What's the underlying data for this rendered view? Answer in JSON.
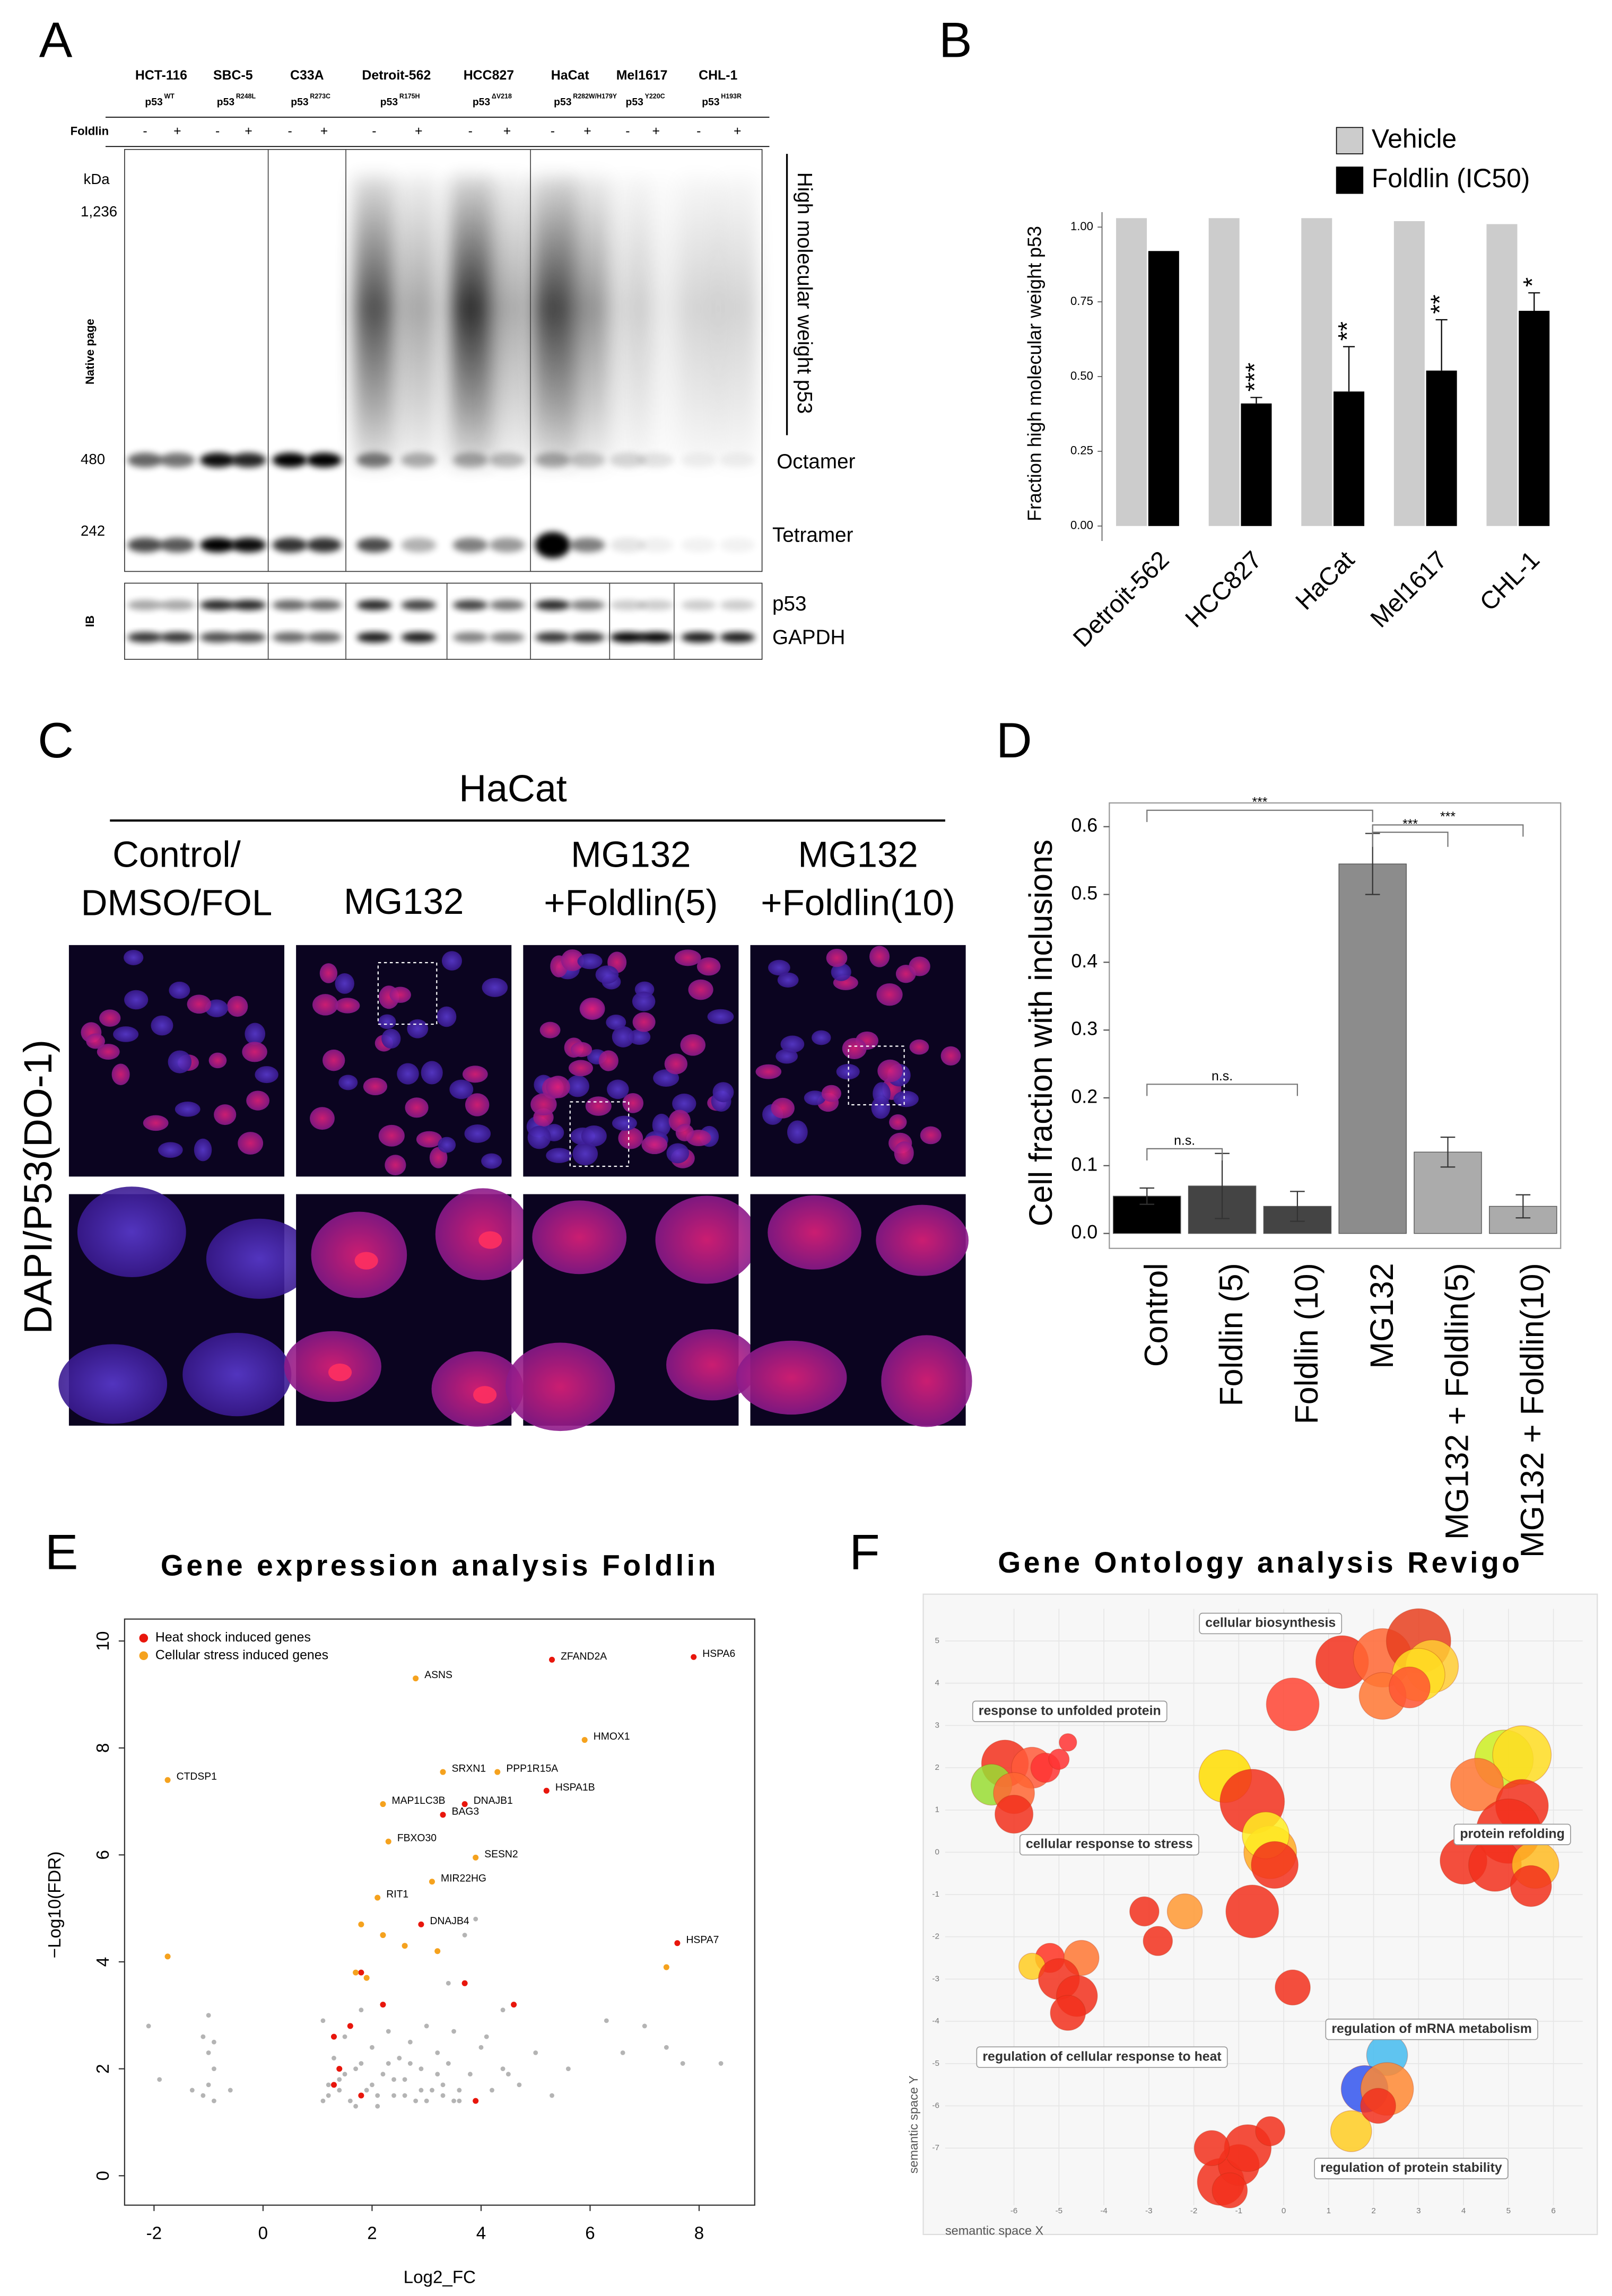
{
  "panels": [
    "A",
    "B",
    "C",
    "D",
    "E",
    "F"
  ],
  "blot": {
    "lanes": [
      {
        "name": "HCT-116",
        "p53": "p53",
        "mutation": "WT"
      },
      {
        "name": "SBC-5",
        "p53": "p53",
        "mutation": "R248L"
      },
      {
        "name": "C33A",
        "p53": "p53",
        "mutation": "R273C"
      },
      {
        "name": "Detroit-562",
        "p53": "p53",
        "mutation": "R175H"
      },
      {
        "name": "HCC827",
        "p53": "p53",
        "mutation": "ΔV218"
      },
      {
        "name": "HaCat",
        "p53": "p53",
        "mutation": "R282W/H179Y"
      },
      {
        "name": "Mel1617",
        "p53": "p53",
        "mutation": "Y220C"
      },
      {
        "name": "CHL-1",
        "p53": "p53",
        "mutation": "H193R"
      }
    ],
    "treatment": "Foldlin",
    "signs": [
      "-",
      "+"
    ],
    "kda": "kDa",
    "markers": [
      "1,236",
      "480",
      "242"
    ],
    "gel": "Native page",
    "bands": [
      "High molecular weight p53",
      "Octamer",
      "Tetramer"
    ],
    "ib": "IB",
    "ib_bands": [
      "p53",
      "GAPDH"
    ]
  },
  "microscopy": {
    "cell_line": "HaCat",
    "columns": [
      [
        "Control/",
        "DMSO/FOL"
      ],
      [
        "MG132"
      ],
      [
        "MG132",
        "+Foldlin(5)"
      ],
      [
        "MG132",
        "+Foldlin(10)"
      ]
    ],
    "stain": "DAPI/P53(DO-1)"
  },
  "chart_data": [
    {
      "type": "bar",
      "ylabel": "Fraction high molecular weight p53",
      "categories": [
        "Detroit-562",
        "HCC827",
        "HaCat",
        "Mel1617",
        "CHL-1"
      ],
      "series": [
        {
          "name": "Vehicle",
          "color": "#cccccc",
          "values": [
            1.03,
            1.03,
            1.03,
            1.02,
            1.01
          ]
        },
        {
          "name": "Foldlin (IC50)",
          "color": "#000000",
          "values": [
            0.92,
            0.41,
            0.45,
            0.52,
            0.72
          ],
          "errors": [
            0,
            0.02,
            0.15,
            0.17,
            0.06
          ],
          "significance": [
            null,
            "***",
            "**",
            "**",
            "*"
          ]
        }
      ],
      "ylim": [
        -0.05,
        1.05
      ],
      "yticks": [
        {
          "value": 0,
          "label": "0.00"
        },
        0.25,
        {
          "value": 0.5,
          "label": "0.50"
        },
        0.75,
        {
          "value": 1,
          "label": "1.00"
        }
      ],
      "legend": "top-right"
    },
    {
      "type": "bar",
      "ylabel": "Cell fraction with inclusions",
      "categories": [
        "Control",
        "Foldlin (5)",
        "Foldlin (10)",
        "MG132",
        "MG132 + Foldlin(5)",
        "MG132 + Foldlin(10)"
      ],
      "values": [
        0.055,
        0.07,
        0.04,
        0.545,
        0.12,
        0.04
      ],
      "errors": [
        0.012,
        0.048,
        0.022,
        0.045,
        0.022,
        0.017
      ],
      "colors": [
        "#000000",
        "#444444",
        "#444444",
        "#8c8c8c",
        "#ababab",
        "#ababab"
      ],
      "ylim": [
        -0.022,
        0.635
      ],
      "yticks": [
        {
          "value": 0,
          "label": "0.0"
        },
        0.1,
        0.2,
        0.3,
        0.4,
        0.5,
        0.6
      ],
      "comparisons": [
        {
          "from": 0,
          "to": 3,
          "label": "***"
        },
        {
          "from": 3,
          "to": 4,
          "label": "***"
        },
        {
          "from": 3,
          "to": 5,
          "label": "***"
        },
        {
          "from": 0,
          "to": 1,
          "label": "n.s."
        },
        {
          "from": 0,
          "to": 2,
          "label": "n.s."
        }
      ]
    },
    {
      "type": "scatter",
      "title": "Gene expression analysis Foldlin",
      "xlabel": "Log2_FC",
      "ylabel": "−Log10(FDR)",
      "series": [
        {
          "color": "#b4b4b4",
          "x": [
            -2.1,
            -1.9,
            -1.1,
            -1.0,
            -0.9,
            -1.0,
            -1.1,
            -0.9,
            -1.0,
            -0.9,
            -1.3,
            -0.6,
            1.1,
            1.2,
            1.3,
            1.4,
            1.5,
            1.6,
            1.7,
            1.8,
            1.9,
            2.0,
            2.1,
            2.2,
            2.3,
            2.4,
            2.5,
            2.6,
            2.7,
            2.8,
            2.9,
            3.0,
            3.1,
            3.2,
            3.3,
            3.4,
            3.5,
            3.6,
            3.8,
            4.0,
            4.2,
            4.4,
            4.7,
            5.0,
            5.3,
            5.6,
            1.2,
            1.5,
            1.8,
            2.1,
            2.4,
            2.7,
            3.0,
            3.3,
            3.6,
            1.1,
            1.4,
            1.7,
            2.0,
            2.3,
            2.6,
            2.9,
            3.2,
            3.5,
            4.1,
            4.5,
            3.7,
            3.9,
            6.3,
            6.6,
            7.4,
            7.7,
            8.4,
            7.0,
            4.4,
            3.4
          ],
          "y": [
            2.8,
            1.8,
            2.6,
            2.3,
            2.0,
            1.7,
            1.5,
            1.4,
            3.0,
            2.5,
            1.6,
            1.6,
            2.9,
            1.5,
            2.2,
            1.8,
            2.6,
            1.4,
            2.0,
            3.1,
            1.6,
            2.4,
            1.3,
            1.9,
            2.7,
            1.5,
            2.2,
            1.8,
            2.5,
            1.4,
            2.0,
            2.8,
            1.6,
            2.3,
            1.5,
            2.1,
            2.7,
            1.4,
            1.9,
            2.4,
            1.6,
            2.0,
            1.7,
            2.3,
            1.5,
            2.0,
            1.7,
            1.9,
            2.1,
            1.5,
            1.8,
            2.1,
            1.4,
            1.7,
            1.6,
            1.4,
            1.6,
            1.3,
            1.7,
            2.1,
            1.5,
            1.6,
            1.9,
            1.4,
            2.6,
            1.9,
            4.5,
            4.8,
            2.9,
            2.3,
            2.4,
            2.1,
            2.1,
            2.8,
            3.1,
            3.6
          ]
        },
        {
          "name": "Heat shock induced genes",
          "color": "#e8160c",
          "x": [
            7.9,
            5.3,
            5.2,
            3.7,
            3.3,
            2.9,
            7.6,
            1.8,
            2.2,
            3.7,
            4.6,
            1.3,
            1.6,
            1.4,
            3.9,
            1.3,
            1.8
          ],
          "y": [
            9.7,
            9.65,
            7.2,
            6.95,
            6.75,
            4.7,
            4.35,
            3.8,
            3.2,
            3.6,
            3.2,
            2.6,
            2.8,
            2.0,
            1.4,
            1.7,
            1.5
          ],
          "labels": [
            "HSPA6",
            "ZFAND2A",
            "HSPA1B",
            "DNAJB1",
            "BAG3",
            "DNAJB4",
            "HSPA7",
            null,
            null,
            null,
            null,
            null,
            null,
            null,
            null,
            null,
            null
          ]
        },
        {
          "name": "Cellular stress induced genes",
          "color": "#f5a21e",
          "x": [
            2.8,
            5.9,
            -1.75,
            3.3,
            4.3,
            2.2,
            2.3,
            3.9,
            3.1,
            2.1,
            -1.75,
            7.4,
            1.8,
            2.2,
            1.7,
            1.9,
            3.2,
            2.6
          ],
          "y": [
            9.3,
            8.15,
            7.4,
            7.55,
            7.55,
            6.95,
            6.25,
            5.95,
            5.5,
            5.2,
            4.1,
            3.9,
            4.7,
            4.5,
            3.8,
            3.7,
            4.2,
            4.3
          ],
          "labels": [
            "ASNS",
            "HMOX1",
            "CTDSP1",
            "SRXN1",
            "PPP1R15A",
            "MAP1LC3B",
            "FBXO30",
            "SESN2",
            "MIR22HG",
            "RIT1",
            null,
            null,
            null,
            null,
            null,
            null,
            null,
            null
          ]
        }
      ],
      "xlim": [
        -2.54,
        9.02
      ],
      "ylim": [
        -0.55,
        10.41
      ],
      "xticks": [
        -2,
        0,
        2,
        4,
        6,
        8
      ],
      "yticks": [
        0,
        2,
        4,
        6,
        8,
        10
      ],
      "legend": "top-left"
    },
    {
      "type": "bubble",
      "title": "Gene Ontology analysis Revigo",
      "xlabel": "semantic space X",
      "ylabel": "semantic space Y",
      "x": [
        1.3,
        2.2,
        3.0,
        3.3,
        3.0,
        2.2,
        2.8,
        0.2,
        -6.2,
        -5.6,
        -6.5,
        -6.0,
        -5.3,
        -5.0,
        -4.8,
        -6.0,
        -1.3,
        -0.7,
        -0.3,
        -0.4,
        -0.2,
        -2.2,
        -3.1,
        -2.8,
        -0.7,
        4.9,
        5.3,
        4.3,
        5.3,
        5.0,
        4.0,
        4.7,
        5.6,
        5.5,
        -5.2,
        -5.6,
        -4.5,
        -5.0,
        -4.6,
        -4.8,
        2.3,
        1.8,
        2.3,
        1.5,
        2.1,
        0.2,
        -1.4,
        -1.0,
        -0.8,
        -1.6,
        -0.3,
        -1.2
      ],
      "y": [
        4.5,
        4.6,
        5.0,
        4.4,
        4.2,
        3.7,
        3.9,
        3.5,
        2.1,
        2.0,
        1.6,
        1.4,
        2.0,
        2.2,
        2.6,
        0.9,
        1.8,
        1.2,
        0.0,
        0.4,
        -0.3,
        -1.4,
        -1.4,
        -2.1,
        -1.4,
        2.2,
        2.3,
        1.6,
        1.1,
        0.5,
        -0.2,
        -0.3,
        -0.3,
        -0.8,
        -2.5,
        -2.7,
        -2.5,
        -3.0,
        -3.4,
        -3.8,
        -4.8,
        -5.6,
        -5.6,
        -6.6,
        -6.0,
        -3.2,
        -7.8,
        -7.4,
        -7.0,
        -7.0,
        -6.6,
        -8.0
      ],
      "sizes": [
        18,
        20,
        22,
        18,
        18,
        16,
        14,
        18,
        16,
        14,
        14,
        14,
        10,
        7,
        6,
        13,
        18,
        22,
        18,
        16,
        16,
        12,
        10,
        10,
        18,
        20,
        20,
        18,
        18,
        22,
        16,
        18,
        16,
        14,
        10,
        9,
        12,
        14,
        14,
        12,
        14,
        16,
        18,
        14,
        12,
        12,
        16,
        14,
        16,
        12,
        10,
        12
      ],
      "colors": [
        "#f2301c",
        "#ff6633",
        "#e8401e",
        "#ffcc33",
        "#ffdd22",
        "#ff7733",
        "#ff5533",
        "#ff4433",
        "#f2301c",
        "#ff5a3a",
        "#99dd33",
        "#ff6633",
        "#ff3333",
        "#ff3333",
        "#ff3333",
        "#f2301c",
        "#ffdd00",
        "#f2301c",
        "#ffaa22",
        "#ffee22",
        "#f2301c",
        "#ff9933",
        "#f2301c",
        "#f2301c",
        "#f2301c",
        "#ccee22",
        "#ffdd22",
        "#ff7733",
        "#f2301c",
        "#f2301c",
        "#f2301c",
        "#f2301c",
        "#ffbb22",
        "#f2301c",
        "#ff3322",
        "#ffcc22",
        "#ff7733",
        "#f2301c",
        "#f2301c",
        "#f2301c",
        "#44bbee",
        "#3355ee",
        "#ff8833",
        "#ffcc22",
        "#f2301c",
        "#f2301c",
        "#f2301c",
        "#f2301c",
        "#f2301c",
        "#f2301c",
        "#f2301c",
        "#f2301c"
      ],
      "annotations": [
        "cellular biosynthesis",
        "response to unfolded protein",
        "cellular response to stress",
        "protein refolding",
        "regulation of mRNA metabolism",
        "regulation of cellular response to heat",
        "regulation of protein stability"
      ],
      "xlim": [
        -7.53,
        6.65
      ],
      "ylim": [
        -8.35,
        5.76
      ],
      "xticks": [
        -6,
        -5,
        -4,
        -3,
        -2,
        -1,
        0,
        1,
        2,
        3,
        4,
        5,
        6
      ],
      "yticks": [
        5,
        4,
        3,
        2,
        1,
        0,
        -1,
        -2,
        -3,
        -4,
        -5,
        -6,
        -7
      ],
      "grid": true
    }
  ]
}
